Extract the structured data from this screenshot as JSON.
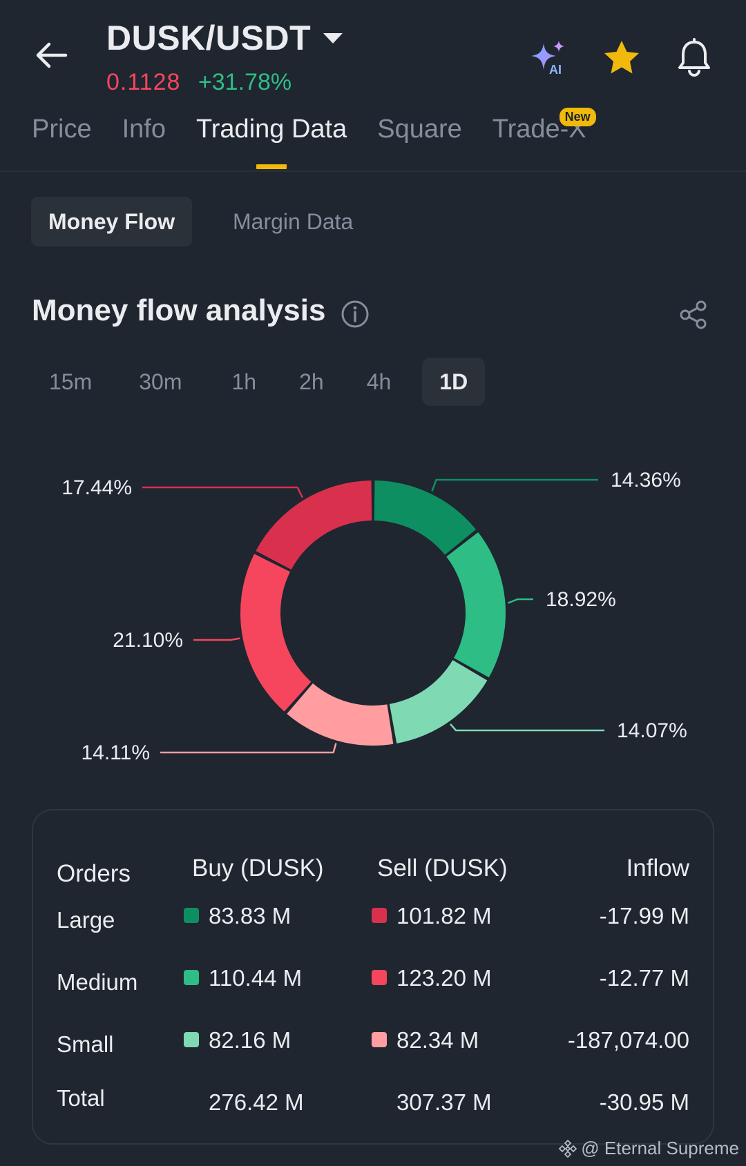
{
  "header": {
    "pair": "DUSK/USDT",
    "last_price": "0.1128",
    "change_pct": "+31.78%"
  },
  "header_icons": [
    "back-arrow-icon",
    "ai-sparkle-icon",
    "star-icon",
    "bell-icon"
  ],
  "tabs": [
    {
      "label": "Price",
      "active": false
    },
    {
      "label": "Info",
      "active": false
    },
    {
      "label": "Trading Data",
      "active": true
    },
    {
      "label": "Square",
      "active": false
    },
    {
      "label": "Trade-X",
      "active": false,
      "badge": "New"
    }
  ],
  "segments": {
    "money_flow": "Money Flow",
    "margin_data": "Margin Data"
  },
  "section": {
    "title": "Money flow analysis"
  },
  "intervals": [
    {
      "label": "15m",
      "active": false
    },
    {
      "label": "30m",
      "active": false
    },
    {
      "label": "1h",
      "active": false
    },
    {
      "label": "2h",
      "active": false
    },
    {
      "label": "4h",
      "active": false
    },
    {
      "label": "1D",
      "active": true
    }
  ],
  "colors": {
    "buy_large": "#0e8f61",
    "buy_medium": "#2ebd85",
    "buy_small": "#7fd9b3",
    "sell_large": "#d9304e",
    "sell_medium": "#f6465d",
    "sell_small": "#ff9da0",
    "accent": "#f0b90b"
  },
  "chart_data": {
    "type": "pie",
    "slices": [
      {
        "label": "14.36%",
        "value": 14.36,
        "color": "#0e8f61"
      },
      {
        "label": "18.92%",
        "value": 18.92,
        "color": "#2ebd85"
      },
      {
        "label": "14.07%",
        "value": 14.07,
        "color": "#7fd9b3"
      },
      {
        "label": "14.11%",
        "value": 14.11,
        "color": "#ff9da0"
      },
      {
        "label": "21.10%",
        "value": 21.1,
        "color": "#f6465d"
      },
      {
        "label": "17.44%",
        "value": 17.44,
        "color": "#d9304e"
      }
    ]
  },
  "table": {
    "headers": {
      "orders": "Orders",
      "buy": "Buy (DUSK)",
      "sell": "Sell (DUSK)",
      "inflow": "Inflow"
    },
    "rows": [
      {
        "label": "Large",
        "buy": "83.83 M",
        "sell": "101.82 M",
        "inflow": "-17.99 M"
      },
      {
        "label": "Medium",
        "buy": "110.44 M",
        "sell": "123.20 M",
        "inflow": "-12.77 M"
      },
      {
        "label": "Small",
        "buy": "82.16 M",
        "sell": "82.34 M",
        "inflow": "-187,074.00"
      }
    ],
    "total": {
      "label": "Total",
      "buy": "276.42 M",
      "sell": "307.37 M",
      "inflow": "-30.95 M"
    }
  },
  "watermark": "@ Eternal Supreme"
}
